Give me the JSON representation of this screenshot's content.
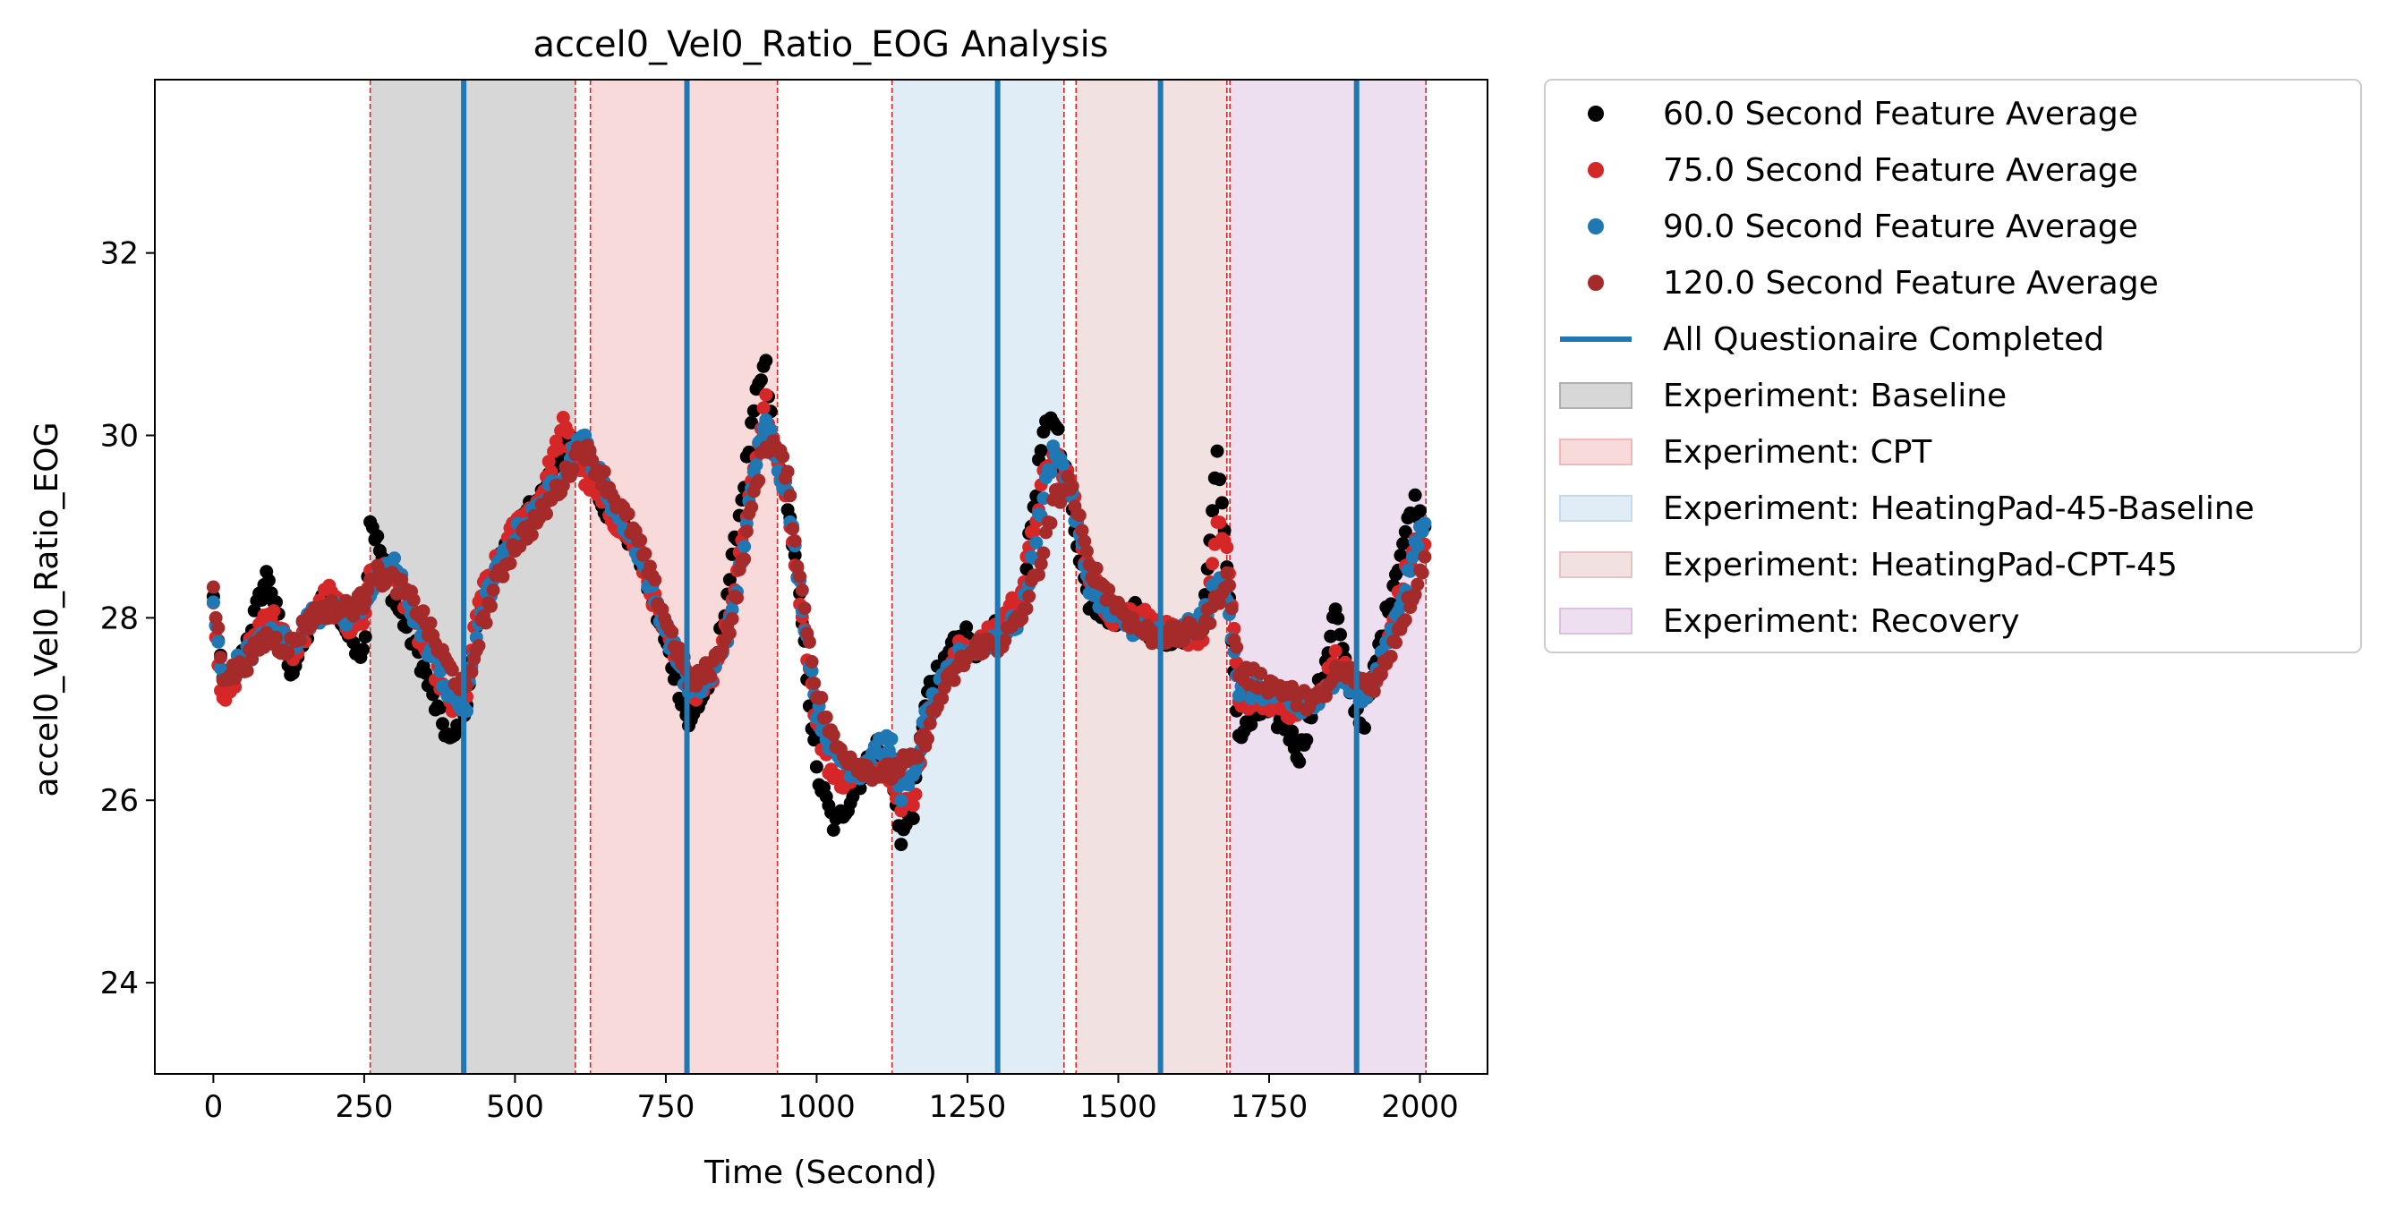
{
  "chart_data": {
    "type": "scatter",
    "title": "accel0_Vel0_Ratio_EOG Analysis",
    "xlabel": "Time (Second)",
    "ylabel": "accel0_Vel0_Ratio_EOG",
    "xlim": [
      -97,
      2112
    ],
    "ylim": [
      23.0,
      33.9
    ],
    "xticks": [
      0,
      250,
      500,
      750,
      1000,
      1250,
      1500,
      1750,
      2000
    ],
    "yticks": [
      24,
      26,
      28,
      30,
      32
    ],
    "grid": false,
    "legend_position": "outside-upper-right",
    "series": [
      {
        "name": "60.0 Second Feature Average",
        "color": "#000000",
        "anchors": [
          [
            0,
            28.2
          ],
          [
            15,
            27.3
          ],
          [
            40,
            27.4
          ],
          [
            90,
            28.5
          ],
          [
            110,
            27.9
          ],
          [
            130,
            27.4
          ],
          [
            160,
            27.9
          ],
          [
            190,
            28.3
          ],
          [
            225,
            27.8
          ],
          [
            250,
            27.6
          ],
          [
            260,
            29.1
          ],
          [
            300,
            28.2
          ],
          [
            340,
            27.6
          ],
          [
            370,
            27.0
          ],
          [
            395,
            26.6
          ],
          [
            420,
            27.1
          ],
          [
            440,
            28.0
          ],
          [
            470,
            28.5
          ],
          [
            500,
            29.0
          ],
          [
            540,
            29.3
          ],
          [
            580,
            29.9
          ],
          [
            610,
            29.9
          ],
          [
            650,
            29.2
          ],
          [
            700,
            28.8
          ],
          [
            760,
            27.5
          ],
          [
            790,
            26.8
          ],
          [
            800,
            27.0
          ],
          [
            830,
            27.4
          ],
          [
            860,
            28.6
          ],
          [
            900,
            30.4
          ],
          [
            915,
            30.8
          ],
          [
            930,
            29.8
          ],
          [
            950,
            29.4
          ],
          [
            975,
            28.0
          ],
          [
            1000,
            26.3
          ],
          [
            1030,
            25.7
          ],
          [
            1070,
            26.2
          ],
          [
            1100,
            26.6
          ],
          [
            1125,
            26.2
          ],
          [
            1140,
            25.6
          ],
          [
            1160,
            25.9
          ],
          [
            1180,
            27.1
          ],
          [
            1210,
            27.5
          ],
          [
            1240,
            27.9
          ],
          [
            1270,
            27.6
          ],
          [
            1300,
            27.9
          ],
          [
            1340,
            28.2
          ],
          [
            1375,
            30.0
          ],
          [
            1395,
            30.2
          ],
          [
            1420,
            29.3
          ],
          [
            1450,
            28.2
          ],
          [
            1490,
            28.0
          ],
          [
            1530,
            28.1
          ],
          [
            1560,
            27.8
          ],
          [
            1600,
            27.8
          ],
          [
            1640,
            27.9
          ],
          [
            1665,
            29.9
          ],
          [
            1680,
            28.5
          ],
          [
            1700,
            26.7
          ],
          [
            1740,
            27.0
          ],
          [
            1780,
            26.8
          ],
          [
            1800,
            26.5
          ],
          [
            1840,
            27.4
          ],
          [
            1860,
            28.1
          ],
          [
            1880,
            27.3
          ],
          [
            1905,
            26.8
          ],
          [
            1930,
            27.6
          ],
          [
            1960,
            28.5
          ],
          [
            1990,
            29.3
          ],
          [
            2010,
            29.0
          ]
        ]
      },
      {
        "name": "75.0 Second Feature Average",
        "color": "#d62728",
        "anchors": [
          [
            0,
            28.2
          ],
          [
            15,
            27.0
          ],
          [
            40,
            27.4
          ],
          [
            90,
            28.1
          ],
          [
            110,
            27.9
          ],
          [
            130,
            27.6
          ],
          [
            160,
            27.9
          ],
          [
            190,
            28.3
          ],
          [
            225,
            27.9
          ],
          [
            250,
            28.0
          ],
          [
            260,
            28.5
          ],
          [
            300,
            28.5
          ],
          [
            340,
            27.8
          ],
          [
            370,
            27.4
          ],
          [
            395,
            27.0
          ],
          [
            420,
            27.2
          ],
          [
            440,
            28.2
          ],
          [
            470,
            28.6
          ],
          [
            500,
            29.0
          ],
          [
            540,
            29.3
          ],
          [
            580,
            30.1
          ],
          [
            610,
            29.6
          ],
          [
            650,
            29.2
          ],
          [
            700,
            28.8
          ],
          [
            760,
            27.6
          ],
          [
            790,
            27.3
          ],
          [
            800,
            27.2
          ],
          [
            830,
            27.4
          ],
          [
            860,
            28.2
          ],
          [
            900,
            29.8
          ],
          [
            915,
            30.4
          ],
          [
            930,
            29.8
          ],
          [
            950,
            29.4
          ],
          [
            975,
            28.1
          ],
          [
            1000,
            26.8
          ],
          [
            1030,
            26.2
          ],
          [
            1070,
            26.3
          ],
          [
            1100,
            26.4
          ],
          [
            1125,
            26.3
          ],
          [
            1140,
            25.9
          ],
          [
            1160,
            26.0
          ],
          [
            1180,
            26.8
          ],
          [
            1210,
            27.3
          ],
          [
            1240,
            27.7
          ],
          [
            1270,
            27.7
          ],
          [
            1300,
            27.9
          ],
          [
            1340,
            28.3
          ],
          [
            1375,
            29.5
          ],
          [
            1395,
            29.8
          ],
          [
            1420,
            29.5
          ],
          [
            1450,
            28.5
          ],
          [
            1490,
            28.0
          ],
          [
            1530,
            28.1
          ],
          [
            1560,
            27.9
          ],
          [
            1600,
            27.8
          ],
          [
            1640,
            27.8
          ],
          [
            1665,
            29.0
          ],
          [
            1680,
            28.8
          ],
          [
            1700,
            27.1
          ],
          [
            1740,
            27.1
          ],
          [
            1780,
            27.0
          ],
          [
            1800,
            27.0
          ],
          [
            1840,
            27.2
          ],
          [
            1860,
            27.6
          ],
          [
            1880,
            27.4
          ],
          [
            1905,
            27.2
          ],
          [
            1930,
            27.3
          ],
          [
            1960,
            28.1
          ],
          [
            1990,
            28.8
          ],
          [
            2010,
            28.8
          ]
        ]
      },
      {
        "name": "90.0 Second Feature Average",
        "color": "#1f77b4",
        "anchors": [
          [
            0,
            28.1
          ],
          [
            15,
            27.3
          ],
          [
            40,
            27.5
          ],
          [
            90,
            27.8
          ],
          [
            110,
            27.8
          ],
          [
            130,
            27.7
          ],
          [
            160,
            28.0
          ],
          [
            190,
            28.1
          ],
          [
            225,
            28.0
          ],
          [
            250,
            28.2
          ],
          [
            260,
            28.3
          ],
          [
            300,
            28.6
          ],
          [
            340,
            27.9
          ],
          [
            370,
            27.5
          ],
          [
            395,
            27.1
          ],
          [
            420,
            27.0
          ],
          [
            440,
            28.0
          ],
          [
            470,
            28.5
          ],
          [
            500,
            28.9
          ],
          [
            540,
            29.2
          ],
          [
            580,
            29.6
          ],
          [
            610,
            30.0
          ],
          [
            650,
            29.4
          ],
          [
            700,
            28.8
          ],
          [
            760,
            27.7
          ],
          [
            790,
            27.2
          ],
          [
            800,
            27.2
          ],
          [
            830,
            27.4
          ],
          [
            860,
            28.0
          ],
          [
            900,
            29.7
          ],
          [
            915,
            30.3
          ],
          [
            930,
            29.8
          ],
          [
            950,
            29.4
          ],
          [
            975,
            28.2
          ],
          [
            1000,
            27.0
          ],
          [
            1030,
            26.5
          ],
          [
            1070,
            26.3
          ],
          [
            1100,
            26.6
          ],
          [
            1125,
            26.6
          ],
          [
            1140,
            26.1
          ],
          [
            1160,
            26.2
          ],
          [
            1180,
            26.9
          ],
          [
            1210,
            27.3
          ],
          [
            1240,
            27.6
          ],
          [
            1270,
            27.7
          ],
          [
            1300,
            27.8
          ],
          [
            1340,
            28.0
          ],
          [
            1375,
            29.3
          ],
          [
            1395,
            29.9
          ],
          [
            1420,
            29.4
          ],
          [
            1450,
            28.4
          ],
          [
            1490,
            28.0
          ],
          [
            1530,
            27.9
          ],
          [
            1560,
            27.8
          ],
          [
            1600,
            27.8
          ],
          [
            1640,
            28.0
          ],
          [
            1665,
            28.4
          ],
          [
            1680,
            28.3
          ],
          [
            1700,
            27.2
          ],
          [
            1740,
            27.2
          ],
          [
            1780,
            27.1
          ],
          [
            1800,
            27.0
          ],
          [
            1840,
            27.1
          ],
          [
            1860,
            27.4
          ],
          [
            1880,
            27.3
          ],
          [
            1905,
            27.1
          ],
          [
            1930,
            27.4
          ],
          [
            1960,
            28.0
          ],
          [
            1990,
            28.7
          ],
          [
            2010,
            29.1
          ]
        ]
      },
      {
        "name": "120.0 Second Feature Average",
        "color": "#a52a2a",
        "anchors": [
          [
            0,
            28.3
          ],
          [
            15,
            27.4
          ],
          [
            40,
            27.4
          ],
          [
            90,
            27.8
          ],
          [
            110,
            27.7
          ],
          [
            130,
            27.7
          ],
          [
            160,
            28.0
          ],
          [
            190,
            28.1
          ],
          [
            225,
            28.1
          ],
          [
            250,
            28.2
          ],
          [
            260,
            28.5
          ],
          [
            300,
            28.4
          ],
          [
            340,
            28.1
          ],
          [
            370,
            27.7
          ],
          [
            395,
            27.4
          ],
          [
            420,
            27.2
          ],
          [
            440,
            27.8
          ],
          [
            470,
            28.4
          ],
          [
            500,
            28.8
          ],
          [
            540,
            29.1
          ],
          [
            580,
            29.5
          ],
          [
            610,
            29.9
          ],
          [
            650,
            29.5
          ],
          [
            700,
            28.9
          ],
          [
            760,
            27.8
          ],
          [
            790,
            27.3
          ],
          [
            800,
            27.3
          ],
          [
            830,
            27.5
          ],
          [
            860,
            28.0
          ],
          [
            900,
            29.5
          ],
          [
            915,
            29.9
          ],
          [
            930,
            29.9
          ],
          [
            950,
            29.6
          ],
          [
            975,
            28.3
          ],
          [
            1000,
            27.2
          ],
          [
            1030,
            26.6
          ],
          [
            1070,
            26.4
          ],
          [
            1100,
            26.3
          ],
          [
            1125,
            26.3
          ],
          [
            1140,
            26.4
          ],
          [
            1160,
            26.4
          ],
          [
            1180,
            26.7
          ],
          [
            1210,
            27.2
          ],
          [
            1240,
            27.5
          ],
          [
            1270,
            27.7
          ],
          [
            1300,
            27.7
          ],
          [
            1340,
            28.0
          ],
          [
            1375,
            28.7
          ],
          [
            1395,
            29.3
          ],
          [
            1420,
            29.5
          ],
          [
            1450,
            28.6
          ],
          [
            1490,
            28.2
          ],
          [
            1530,
            27.9
          ],
          [
            1560,
            27.8
          ],
          [
            1600,
            27.8
          ],
          [
            1640,
            27.9
          ],
          [
            1665,
            28.2
          ],
          [
            1680,
            28.5
          ],
          [
            1700,
            27.4
          ],
          [
            1740,
            27.3
          ],
          [
            1780,
            27.2
          ],
          [
            1800,
            27.1
          ],
          [
            1840,
            27.1
          ],
          [
            1860,
            27.4
          ],
          [
            1880,
            27.4
          ],
          [
            1905,
            27.3
          ],
          [
            1930,
            27.3
          ],
          [
            1960,
            27.8
          ],
          [
            1990,
            28.3
          ],
          [
            2010,
            28.7
          ]
        ]
      }
    ],
    "questionnaire": {
      "name": "All Questionaire Completed",
      "color": "#1f77b4",
      "x": [
        415,
        785,
        1300,
        1570,
        1895
      ]
    },
    "experiments": [
      {
        "name": "Experiment: Baseline",
        "color": "#b0b0b0",
        "spans": [
          [
            260,
            600
          ]
        ]
      },
      {
        "name": "Experiment: CPT",
        "color": "#f4b6b8",
        "spans": [
          [
            625,
            935
          ]
        ]
      },
      {
        "name": "Experiment: HeatingPad-45-Baseline",
        "color": "#c3dbed",
        "spans": [
          [
            1125,
            1410
          ]
        ]
      },
      {
        "name": "Experiment: HeatingPad-CPT-45",
        "color": "#e6c3c3",
        "spans": [
          [
            1430,
            1680
          ]
        ]
      },
      {
        "name": "Experiment: Recovery",
        "color": "#dcc0e0",
        "spans": [
          [
            1685,
            2010
          ]
        ]
      }
    ],
    "boundary_lines_x": [
      260,
      600,
      625,
      935,
      1125,
      1410,
      1430,
      1680,
      1685,
      2010
    ],
    "boundary_line_color": "#d62728"
  }
}
